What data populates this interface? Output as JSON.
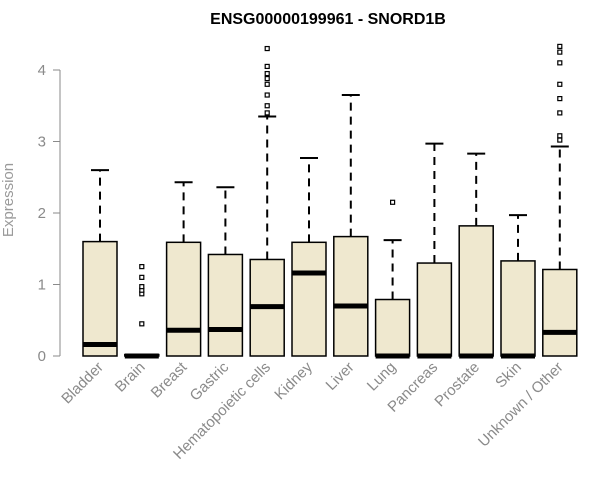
{
  "chart_data": {
    "type": "boxplot",
    "title": "ENSG00000199961 - SNORD1B",
    "xlabel": "",
    "ylabel": "Expression",
    "ylim": [
      0,
      4.4
    ],
    "yticks": [
      0,
      1,
      2,
      3,
      4
    ],
    "box_fill": "#efe8cf",
    "box_stroke": "#000000",
    "categories": [
      "Bladder",
      "Brain",
      "Breast",
      "Gastric",
      "Hematopoietic cells",
      "Kidney",
      "Liver",
      "Lung",
      "Pancreas",
      "Prostate",
      "Skin",
      "Unknown / Other"
    ],
    "boxes": [
      {
        "name": "Bladder",
        "q1": 0.0,
        "median": 0.16,
        "q3": 1.6,
        "whisker_low": 0.0,
        "whisker_high": 2.6,
        "outliers": []
      },
      {
        "name": "Brain",
        "q1": 0.0,
        "median": 0.0,
        "q3": 0.02,
        "whisker_low": 0.0,
        "whisker_high": 0.02,
        "outliers": [
          0.45,
          0.87,
          0.92,
          0.97,
          1.1,
          1.25
        ]
      },
      {
        "name": "Breast",
        "q1": 0.0,
        "median": 0.36,
        "q3": 1.59,
        "whisker_low": 0.0,
        "whisker_high": 2.43,
        "outliers": []
      },
      {
        "name": "Gastric",
        "q1": 0.0,
        "median": 0.37,
        "q3": 1.42,
        "whisker_low": 0.0,
        "whisker_high": 2.36,
        "outliers": []
      },
      {
        "name": "Hematopoietic cells",
        "q1": 0.0,
        "median": 0.69,
        "q3": 1.35,
        "whisker_low": 0.0,
        "whisker_high": 3.35,
        "outliers": [
          3.4,
          3.5,
          3.65,
          3.8,
          3.88,
          3.95,
          4.05,
          4.3
        ]
      },
      {
        "name": "Kidney",
        "q1": 0.0,
        "median": 1.16,
        "q3": 1.59,
        "whisker_low": 0.0,
        "whisker_high": 2.77,
        "outliers": []
      },
      {
        "name": "Liver",
        "q1": 0.0,
        "median": 0.7,
        "q3": 1.67,
        "whisker_low": 0.0,
        "whisker_high": 3.65,
        "outliers": []
      },
      {
        "name": "Lung",
        "q1": 0.0,
        "median": 0.0,
        "q3": 0.79,
        "whisker_low": 0.0,
        "whisker_high": 1.62,
        "outliers": [
          2.15
        ]
      },
      {
        "name": "Pancreas",
        "q1": 0.0,
        "median": 0.0,
        "q3": 1.3,
        "whisker_low": 0.0,
        "whisker_high": 2.97,
        "outliers": []
      },
      {
        "name": "Prostate",
        "q1": 0.0,
        "median": 0.0,
        "q3": 1.82,
        "whisker_low": 0.0,
        "whisker_high": 2.83,
        "outliers": []
      },
      {
        "name": "Skin",
        "q1": 0.0,
        "median": 0.0,
        "q3": 1.33,
        "whisker_low": 0.0,
        "whisker_high": 1.97,
        "outliers": []
      },
      {
        "name": "Unknown / Other",
        "q1": 0.0,
        "median": 0.33,
        "q3": 1.21,
        "whisker_low": 0.0,
        "whisker_high": 2.93,
        "outliers": [
          3.02,
          3.08,
          3.4,
          3.6,
          3.8,
          4.1,
          4.25,
          4.33
        ]
      }
    ]
  }
}
